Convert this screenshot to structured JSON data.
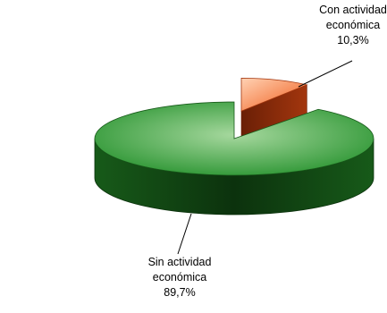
{
  "chart_data": {
    "type": "pie",
    "title": "",
    "style": "3d-exploded",
    "legend": "none",
    "slices": [
      {
        "name_line1": "Sin actividad",
        "name_line2": "económica",
        "value": 89.7,
        "value_label": "89,7%",
        "color_top": "#22902a",
        "color_highlight": "#a6d89e",
        "color_side": "#175a19",
        "color_side_dark": "#0c320d"
      },
      {
        "name_line1": "Con actividad",
        "name_line2": "económica",
        "value": 10.3,
        "value_label": "10,3%",
        "color_top": "#f05a18",
        "color_highlight": "#ffd2b4",
        "color_side": "#a3360e",
        "color_side_dark": "#6a1f06"
      }
    ]
  }
}
